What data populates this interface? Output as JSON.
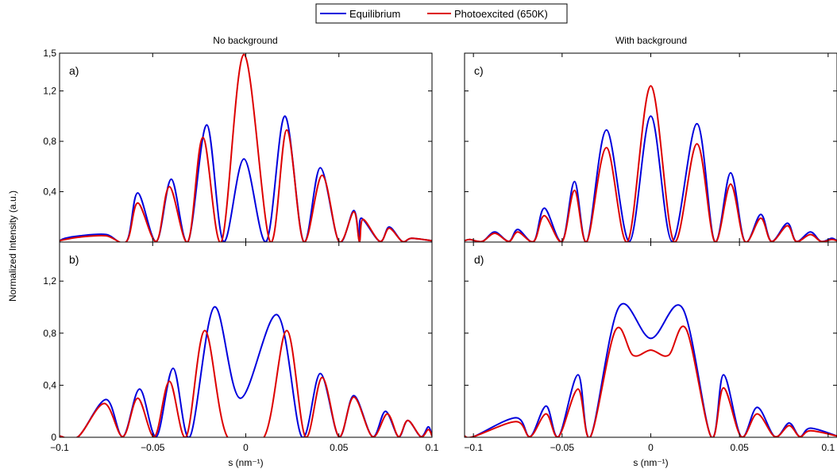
{
  "figure": {
    "ylabel": "Normalized Intensity (a.u.)",
    "legend": {
      "placement": "top-center",
      "entries": [
        "Equilibrium",
        "Photoexcited (650K)"
      ]
    },
    "colors": {
      "equilibrium": "#0000dd",
      "photoexcited": "#dd0000",
      "axes": "#000000"
    },
    "column_titles": [
      "No background",
      "With background"
    ]
  },
  "chart_data": [
    {
      "panel": "a)",
      "type": "line",
      "title": "No background",
      "xlim": [
        -0.1,
        0.1
      ],
      "ylim": [
        0,
        1.5
      ],
      "yticks": [
        0.4,
        0.8,
        1.2,
        1.5
      ],
      "ytick_labels": [
        "0,4",
        "0,8",
        "1,2",
        "1,5"
      ],
      "xticks": [
        -0.1,
        -0.05,
        0,
        0.05,
        0.1
      ],
      "xtick_labels": [],
      "series": [
        {
          "name": "Equilibrium",
          "peaks": [
            [
              -0.097,
              0.03
            ],
            [
              -0.089,
              0.05
            ],
            [
              -0.075,
              0.06
            ],
            [
              -0.058,
              0.39
            ],
            [
              -0.04,
              0.5
            ],
            [
              -0.021,
              0.93
            ],
            [
              -0.001,
              0.66
            ],
            [
              0.021,
              1.0
            ],
            [
              0.04,
              0.59
            ],
            [
              0.058,
              0.25
            ],
            [
              0.062,
              0.19
            ],
            [
              0.077,
              0.12
            ],
            [
              0.089,
              0.03
            ]
          ],
          "zeros": [
            -0.064,
            -0.048,
            -0.031,
            -0.012,
            0.011,
            0.031,
            0.05,
            0.061,
            0.072,
            0.084
          ]
        },
        {
          "name": "Photoexcited (650K)",
          "peaks": [
            [
              -0.097,
              0.02
            ],
            [
              -0.089,
              0.04
            ],
            [
              -0.075,
              0.05
            ],
            [
              -0.058,
              0.31
            ],
            [
              -0.041,
              0.44
            ],
            [
              -0.023,
              0.83
            ],
            [
              -0.001,
              1.49
            ],
            [
              0.022,
              0.89
            ],
            [
              0.041,
              0.53
            ],
            [
              0.058,
              0.24
            ],
            [
              0.063,
              0.18
            ],
            [
              0.077,
              0.11
            ],
            [
              0.089,
              0.03
            ]
          ],
          "zeros": [
            -0.064,
            -0.048,
            -0.031,
            -0.013,
            0.013,
            0.031,
            0.05,
            0.061,
            0.072,
            0.084
          ]
        }
      ]
    },
    {
      "panel": "b)",
      "type": "line",
      "title": "",
      "xlim": [
        -0.1,
        0.1
      ],
      "ylim": [
        0,
        1.5
      ],
      "yticks": [
        0,
        0.4,
        0.8,
        1.2
      ],
      "ytick_labels": [
        "0",
        "0,4",
        "0,8",
        "1,2"
      ],
      "xticks": [
        -0.1,
        -0.05,
        0,
        0.05,
        0.1
      ],
      "xtick_labels": [
        "−0.1",
        "−0.05",
        "0",
        "0.05",
        "0.1"
      ],
      "xlabel": "s (nm⁻¹)",
      "series": [
        {
          "name": "Equilibrium",
          "peaks": [
            [
              -0.075,
              0.29
            ],
            [
              -0.057,
              0.37
            ],
            [
              -0.039,
              0.53
            ],
            [
              -0.017,
              1.0
            ],
            [
              -0.003,
              0.3
            ],
            [
              0.017,
              0.94
            ],
            [
              0.04,
              0.49
            ],
            [
              0.058,
              0.32
            ],
            [
              0.075,
              0.2
            ],
            [
              0.087,
              0.13
            ],
            [
              0.098,
              0.08
            ]
          ],
          "zeros": [
            -0.09,
            -0.066,
            -0.048,
            -0.03,
            0.03,
            0.05,
            0.068,
            0.082,
            0.094
          ]
        },
        {
          "name": "Photoexcited (650K)",
          "peaks": [
            [
              -0.076,
              0.26
            ],
            [
              -0.058,
              0.3
            ],
            [
              -0.041,
              0.43
            ],
            [
              -0.022,
              0.82
            ],
            [
              0.022,
              0.82
            ],
            [
              0.041,
              0.46
            ],
            [
              0.058,
              0.31
            ],
            [
              0.076,
              0.18
            ],
            [
              0.087,
              0.13
            ],
            [
              0.098,
              0.06
            ]
          ],
          "zeros": [
            -0.09,
            -0.066,
            -0.049,
            -0.032,
            -0.01,
            0.01,
            0.032,
            0.05,
            0.068,
            0.082,
            0.094
          ]
        }
      ]
    },
    {
      "panel": "c)",
      "type": "line",
      "title": "With background",
      "xlim": [
        -0.105,
        0.105
      ],
      "ylim": [
        0,
        1.5
      ],
      "yticks": [
        0.4,
        0.8,
        1.2,
        1.5
      ],
      "ytick_labels": [],
      "xticks": [
        -0.1,
        -0.05,
        0,
        0.05,
        0.1
      ],
      "xtick_labels": [],
      "series": [
        {
          "name": "Equilibrium",
          "peaks": [
            [
              -0.102,
              0.02
            ],
            [
              -0.088,
              0.08
            ],
            [
              -0.075,
              0.1
            ],
            [
              -0.06,
              0.27
            ],
            [
              -0.043,
              0.48
            ],
            [
              -0.025,
              0.89
            ],
            [
              0,
              1.0
            ],
            [
              0.026,
              0.94
            ],
            [
              0.045,
              0.55
            ],
            [
              0.062,
              0.22
            ],
            [
              0.077,
              0.15
            ],
            [
              0.09,
              0.08
            ],
            [
              0.102,
              0.03
            ]
          ],
          "zeros": [
            -0.095,
            -0.08,
            -0.066,
            -0.05,
            -0.036,
            -0.012,
            0.012,
            0.036,
            0.053,
            0.068,
            0.082,
            0.096
          ]
        },
        {
          "name": "Photoexcited (650K)",
          "peaks": [
            [
              -0.102,
              0.02
            ],
            [
              -0.088,
              0.07
            ],
            [
              -0.075,
              0.08
            ],
            [
              -0.06,
              0.21
            ],
            [
              -0.043,
              0.41
            ],
            [
              -0.025,
              0.75
            ],
            [
              0,
              1.24
            ],
            [
              0.026,
              0.78
            ],
            [
              0.045,
              0.46
            ],
            [
              0.062,
              0.19
            ],
            [
              0.077,
              0.13
            ],
            [
              0.09,
              0.06
            ],
            [
              0.102,
              0.02
            ]
          ],
          "zeros": [
            -0.095,
            -0.08,
            -0.066,
            -0.05,
            -0.036,
            -0.013,
            0.013,
            0.036,
            0.053,
            0.068,
            0.082,
            0.096
          ]
        }
      ]
    },
    {
      "panel": "d)",
      "type": "line",
      "title": "",
      "xlim": [
        -0.105,
        0.105
      ],
      "ylim": [
        0,
        1.5
      ],
      "yticks": [
        0,
        0.4,
        0.8,
        1.2
      ],
      "ytick_labels": [],
      "xticks": [
        -0.1,
        -0.05,
        0,
        0.05,
        0.1
      ],
      "xtick_labels": [
        "−0.1",
        "−0.05",
        "0",
        "0.05",
        "0.1"
      ],
      "xlabel": "s (nm⁻¹)",
      "series": [
        {
          "name": "Equilibrium",
          "peaks": [
            [
              -0.076,
              0.15
            ],
            [
              -0.059,
              0.24
            ],
            [
              -0.041,
              0.48
            ],
            [
              -0.018,
              1.0
            ],
            [
              0,
              0.76
            ],
            [
              0.018,
              0.99
            ],
            [
              0.041,
              0.48
            ],
            [
              0.06,
              0.23
            ],
            [
              0.078,
              0.11
            ],
            [
              0.09,
              0.07
            ]
          ],
          "zeros": [
            -0.1,
            -0.068,
            -0.052,
            -0.034,
            0.034,
            0.051,
            0.07,
            0.084
          ]
        },
        {
          "name": "Photoexcited (650K)",
          "peaks": [
            [
              -0.076,
              0.12
            ],
            [
              -0.059,
              0.18
            ],
            [
              -0.041,
              0.37
            ],
            [
              -0.02,
              0.82
            ],
            [
              -0.01,
              0.63
            ],
            [
              0,
              0.67
            ],
            [
              0.01,
              0.63
            ],
            [
              0.02,
              0.83
            ],
            [
              0.041,
              0.38
            ],
            [
              0.06,
              0.18
            ],
            [
              0.078,
              0.09
            ],
            [
              0.09,
              0.05
            ]
          ],
          "zeros": [
            -0.1,
            -0.068,
            -0.052,
            -0.034,
            0.034,
            0.051,
            0.07,
            0.084
          ]
        }
      ]
    }
  ]
}
